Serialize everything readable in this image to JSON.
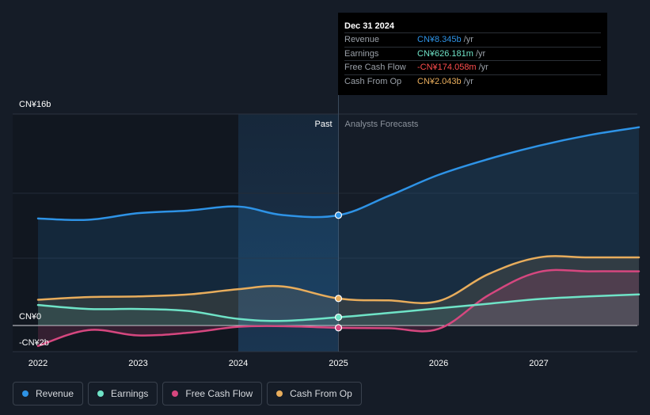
{
  "tooltip": {
    "date": "Dec 31 2024",
    "rows": [
      {
        "label": "Revenue",
        "value": "CN¥8.345b",
        "unit": "/yr"
      },
      {
        "label": "Earnings",
        "value": "CN¥626.181m",
        "unit": "/yr"
      },
      {
        "label": "Free Cash Flow",
        "value": "-CN¥174.058m",
        "unit": "/yr"
      },
      {
        "label": "Cash From Op",
        "value": "CN¥2.043b",
        "unit": "/yr"
      }
    ]
  },
  "colors": {
    "revenue": "#2e93e6",
    "earnings": "#6fe3c7",
    "fcf": "#d6477f",
    "cfo": "#e8ad5c",
    "fcf_text": "#ff4d4d"
  },
  "chart_data": {
    "type": "line",
    "title": "",
    "xlabel": "",
    "ylabel": "",
    "ylim": [
      -2,
      16
    ],
    "y_tick_labels": [
      {
        "value": 16,
        "label": "CN¥16b"
      },
      {
        "value": 0,
        "label": "CN¥0"
      },
      {
        "value": -2,
        "label": "-CN¥2b"
      }
    ],
    "x_ticks": [
      {
        "value": 2022,
        "label": "2022"
      },
      {
        "value": 2023,
        "label": "2023"
      },
      {
        "value": 2024,
        "label": "2024"
      },
      {
        "value": 2025,
        "label": "2025"
      },
      {
        "value": 2026,
        "label": "2026"
      },
      {
        "value": 2027,
        "label": "2027"
      }
    ],
    "xlim": [
      2021.75,
      2028.0
    ],
    "past_label": "Past",
    "forecast_label": "Analysts Forecasts",
    "divider_x": 2025,
    "highlight_from_x": 2024,
    "series": [
      {
        "key": "revenue",
        "name": "Revenue",
        "points": [
          [
            2022,
            8.1
          ],
          [
            2022.5,
            8.0
          ],
          [
            2023,
            8.5
          ],
          [
            2023.5,
            8.7
          ],
          [
            2024,
            9.0
          ],
          [
            2024.45,
            8.35
          ],
          [
            2025,
            8.345
          ],
          [
            2025.5,
            9.8
          ],
          [
            2026,
            11.4
          ],
          [
            2026.5,
            12.6
          ],
          [
            2027,
            13.6
          ],
          [
            2027.5,
            14.4
          ],
          [
            2028,
            15.0
          ]
        ]
      },
      {
        "key": "earnings",
        "name": "Earnings",
        "points": [
          [
            2022,
            1.55
          ],
          [
            2022.5,
            1.25
          ],
          [
            2023,
            1.25
          ],
          [
            2023.5,
            1.1
          ],
          [
            2024,
            0.5
          ],
          [
            2024.45,
            0.35
          ],
          [
            2025,
            0.626
          ],
          [
            2025.5,
            0.95
          ],
          [
            2026,
            1.3
          ],
          [
            2026.5,
            1.65
          ],
          [
            2027,
            2.0
          ],
          [
            2027.5,
            2.2
          ],
          [
            2028,
            2.35
          ]
        ]
      },
      {
        "key": "fcf",
        "name": "Free Cash Flow",
        "points": [
          [
            2022,
            -1.55
          ],
          [
            2022.5,
            -0.35
          ],
          [
            2023,
            -0.75
          ],
          [
            2023.5,
            -0.55
          ],
          [
            2024,
            -0.1
          ],
          [
            2024.45,
            -0.05
          ],
          [
            2025,
            -0.174
          ],
          [
            2025.5,
            -0.2
          ],
          [
            2026,
            -0.25
          ],
          [
            2026.5,
            2.3
          ],
          [
            2027,
            4.05
          ],
          [
            2027.5,
            4.1
          ],
          [
            2028,
            4.1
          ]
        ]
      },
      {
        "key": "cfo",
        "name": "Cash From Op",
        "points": [
          [
            2022,
            1.95
          ],
          [
            2022.5,
            2.15
          ],
          [
            2023,
            2.2
          ],
          [
            2023.5,
            2.35
          ],
          [
            2024,
            2.75
          ],
          [
            2024.45,
            2.95
          ],
          [
            2025,
            2.043
          ],
          [
            2025.5,
            1.9
          ],
          [
            2026,
            1.85
          ],
          [
            2026.5,
            3.9
          ],
          [
            2027,
            5.15
          ],
          [
            2027.5,
            5.15
          ],
          [
            2028,
            5.15
          ]
        ]
      }
    ]
  }
}
